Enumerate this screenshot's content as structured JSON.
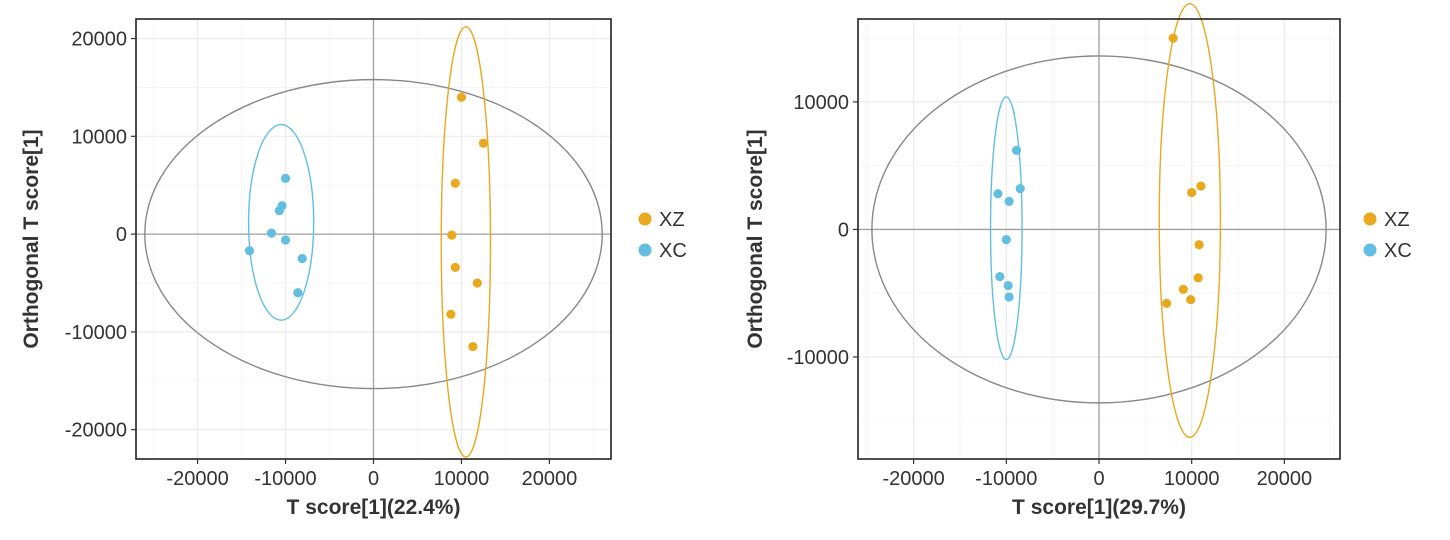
{
  "chart_data": [
    {
      "type": "scatter",
      "title": "",
      "xlabel": "T score[1](22.4%)",
      "ylabel": "Orthogonal T score[1]",
      "xlim": [
        -27000,
        27000
      ],
      "ylim": [
        -23000,
        22000
      ],
      "xticks": [
        -20000,
        -10000,
        0,
        10000,
        20000
      ],
      "yticks": [
        -20000,
        -10000,
        0,
        10000,
        20000
      ],
      "xtick_labels": [
        "-20000",
        "-10000",
        "0",
        "10000",
        "20000"
      ],
      "ytick_labels": [
        "-20000",
        "-10000",
        "0",
        "10000",
        "20000"
      ],
      "grid": true,
      "legend_position": "right",
      "series": [
        {
          "name": "XZ",
          "color": "#E8A91E",
          "points": [
            {
              "x": 10000,
              "y": 14000
            },
            {
              "x": 12500,
              "y": 9300
            },
            {
              "x": 9300,
              "y": 5200
            },
            {
              "x": 8900,
              "y": -100
            },
            {
              "x": 9300,
              "y": -3400
            },
            {
              "x": 11800,
              "y": -5000
            },
            {
              "x": 8800,
              "y": -8200
            },
            {
              "x": 11300,
              "y": -11500
            }
          ]
        },
        {
          "name": "XC",
          "color": "#62BFE0",
          "points": [
            {
              "x": -10000,
              "y": 5700
            },
            {
              "x": -10400,
              "y": 2900
            },
            {
              "x": -10700,
              "y": 2400
            },
            {
              "x": -11600,
              "y": 100
            },
            {
              "x": -10000,
              "y": -600
            },
            {
              "x": -14100,
              "y": -1700
            },
            {
              "x": -8100,
              "y": -2500
            },
            {
              "x": -8600,
              "y": -6000
            }
          ]
        }
      ],
      "ellipses": [
        {
          "name": "total",
          "color": "#888888",
          "cx": 0,
          "cy": 0,
          "rx": 26000,
          "ry": 15800
        },
        {
          "name": "XZ",
          "color": "#E8A91E",
          "cx": 10500,
          "cy": -800,
          "rx": 2800,
          "ry": 22000
        },
        {
          "name": "XC",
          "color": "#62BFE0",
          "cx": -10500,
          "cy": 1200,
          "rx": 3700,
          "ry": 10000
        }
      ]
    },
    {
      "type": "scatter",
      "title": "",
      "xlabel": "T score[1](29.7%)",
      "ylabel": "Orthogonal T score[1]",
      "xlim": [
        -26000,
        26000
      ],
      "ylim": [
        -18000,
        16500
      ],
      "xticks": [
        -20000,
        -10000,
        0,
        10000,
        20000
      ],
      "yticks": [
        -10000,
        0,
        10000
      ],
      "xtick_labels": [
        "-20000",
        "-10000",
        "0",
        "10000",
        "20000"
      ],
      "ytick_labels": [
        "-10000",
        "0",
        "10000"
      ],
      "grid": true,
      "legend_position": "right",
      "series": [
        {
          "name": "XZ",
          "color": "#E8A91E",
          "points": [
            {
              "x": 8000,
              "y": 15000
            },
            {
              "x": 11000,
              "y": 3400
            },
            {
              "x": 10000,
              "y": 2900
            },
            {
              "x": 10800,
              "y": -1200
            },
            {
              "x": 10700,
              "y": -3800
            },
            {
              "x": 9100,
              "y": -4700
            },
            {
              "x": 9900,
              "y": -5500
            },
            {
              "x": 7300,
              "y": -5800
            }
          ]
        },
        {
          "name": "XC",
          "color": "#62BFE0",
          "points": [
            {
              "x": -8900,
              "y": 6200
            },
            {
              "x": -8500,
              "y": 3200
            },
            {
              "x": -10900,
              "y": 2800
            },
            {
              "x": -9700,
              "y": 2200
            },
            {
              "x": -10000,
              "y": -800
            },
            {
              "x": -10700,
              "y": -3700
            },
            {
              "x": -9800,
              "y": -4400
            },
            {
              "x": -9700,
              "y": -5300
            }
          ]
        }
      ],
      "ellipses": [
        {
          "name": "total",
          "color": "#888888",
          "cx": 0,
          "cy": 0,
          "rx": 24500,
          "ry": 13600
        },
        {
          "name": "XZ",
          "color": "#E8A91E",
          "cx": 9800,
          "cy": 700,
          "rx": 3300,
          "ry": 17000
        },
        {
          "name": "XC",
          "color": "#62BFE0",
          "cx": -10000,
          "cy": 100,
          "rx": 1700,
          "ry": 10300
        }
      ]
    }
  ]
}
